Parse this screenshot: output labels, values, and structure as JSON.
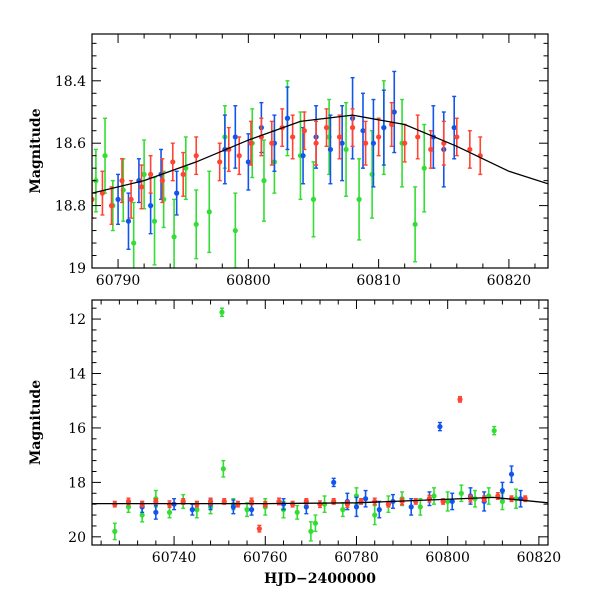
{
  "chart_data": [
    {
      "type": "scatter",
      "title": "",
      "xlabel": "",
      "ylabel": "Magnitude",
      "xlim": [
        60788,
        60823
      ],
      "ylim": [
        19.0,
        18.25
      ],
      "y_inverted": true,
      "grid": false,
      "xticks": [
        60790,
        60800,
        60810,
        60820
      ],
      "yticks": [
        18.4,
        18.6,
        18.8,
        19
      ],
      "colors": {
        "green": "#33dd33",
        "blue": "#1155ee",
        "red": "#ff4433",
        "model": "#000000"
      },
      "model_curve": {
        "x": [
          60788,
          60792,
          60796,
          60800,
          60804,
          60808,
          60812,
          60816,
          60820,
          60823
        ],
        "y": [
          18.76,
          18.72,
          18.66,
          18.59,
          18.53,
          18.51,
          18.54,
          18.61,
          18.69,
          18.73
        ]
      },
      "series": [
        {
          "color": "green",
          "x": [
            60788.3,
            60789.0,
            60789.6,
            60790.4,
            60791.2,
            60792.0,
            60792.8,
            60793.5,
            60794.3,
            60795.2,
            60796.0,
            60797.0,
            60798.2,
            60799.0,
            60800.3,
            60801.2,
            60802.0,
            60803.0,
            60804.0,
            60805.0,
            60806.2,
            60807.5,
            60808.5,
            60809.5,
            60810.4,
            60811.8,
            60812.8,
            60813.5
          ],
          "y": [
            18.72,
            18.64,
            18.8,
            18.75,
            18.92,
            18.7,
            18.85,
            18.78,
            18.9,
            18.68,
            18.86,
            18.82,
            18.58,
            18.88,
            18.6,
            18.72,
            18.66,
            18.52,
            18.64,
            18.78,
            18.58,
            18.62,
            18.78,
            18.7,
            18.55,
            18.6,
            18.86,
            18.68
          ],
          "err": [
            0.1,
            0.12,
            0.08,
            0.1,
            0.13,
            0.11,
            0.14,
            0.09,
            0.12,
            0.1,
            0.11,
            0.13,
            0.1,
            0.12,
            0.11,
            0.13,
            0.1,
            0.12,
            0.14,
            0.12,
            0.12,
            0.15,
            0.13,
            0.14,
            0.15,
            0.14,
            0.12,
            0.14
          ]
        },
        {
          "color": "blue",
          "x": [
            60790.0,
            60790.8,
            60791.6,
            60792.5,
            60793.3,
            60794.5,
            60798.2,
            60799.0,
            60800.0,
            60801.0,
            60802.0,
            60803.0,
            60804.2,
            60805.2,
            60806.3,
            60807.2,
            60808.0,
            60808.8,
            60809.6,
            60810.4,
            60811.2,
            60814.2,
            60815.0,
            60815.8
          ],
          "y": [
            18.78,
            18.85,
            18.72,
            18.8,
            18.7,
            18.76,
            18.62,
            18.58,
            18.66,
            18.55,
            18.6,
            18.52,
            18.64,
            18.58,
            18.62,
            18.6,
            18.52,
            18.56,
            18.6,
            18.55,
            18.5,
            18.58,
            18.62,
            18.55
          ],
          "err": [
            0.08,
            0.09,
            0.07,
            0.09,
            0.08,
            0.07,
            0.11,
            0.1,
            0.09,
            0.08,
            0.09,
            0.1,
            0.09,
            0.1,
            0.11,
            0.12,
            0.13,
            0.12,
            0.14,
            0.12,
            0.13,
            0.1,
            0.12,
            0.1
          ]
        },
        {
          "color": "red",
          "x": [
            60788.0,
            60788.8,
            60789.5,
            60790.3,
            60791.0,
            60791.8,
            60792.5,
            60793.4,
            60794.2,
            60795.0,
            60796.0,
            60797.8,
            60798.5,
            60799.3,
            60800.2,
            60801.0,
            60801.8,
            60802.6,
            60803.4,
            60804.3,
            60805.2,
            60806.0,
            60807.0,
            60808.0,
            60809.0,
            60810.0,
            60811.0,
            60812.0,
            60813.0,
            60814.0,
            60815.0,
            60816.0,
            60817.0,
            60817.8
          ],
          "y": [
            18.78,
            18.76,
            18.8,
            18.72,
            18.78,
            18.74,
            18.7,
            18.72,
            18.66,
            18.7,
            18.64,
            18.66,
            18.62,
            18.64,
            18.6,
            18.58,
            18.6,
            18.55,
            18.58,
            18.56,
            18.6,
            18.55,
            18.58,
            18.55,
            18.6,
            18.58,
            18.54,
            18.6,
            18.58,
            18.62,
            18.6,
            18.58,
            18.62,
            18.64
          ],
          "err": [
            0.06,
            0.07,
            0.06,
            0.07,
            0.06,
            0.07,
            0.06,
            0.07,
            0.06,
            0.07,
            0.06,
            0.06,
            0.07,
            0.06,
            0.07,
            0.06,
            0.07,
            0.06,
            0.07,
            0.06,
            0.07,
            0.06,
            0.07,
            0.06,
            0.07,
            0.06,
            0.07,
            0.06,
            0.07,
            0.06,
            0.07,
            0.06,
            0.06,
            0.06
          ]
        }
      ]
    },
    {
      "type": "scatter",
      "title": "",
      "xlabel": "HJD−2400000",
      "ylabel": "Magnitude",
      "xlim": [
        60722,
        60822
      ],
      "ylim": [
        20.3,
        11.3
      ],
      "y_inverted": true,
      "grid": false,
      "xticks": [
        60740,
        60760,
        60780,
        60800,
        60820
      ],
      "yticks": [
        12,
        14,
        16,
        18,
        20
      ],
      "colors": {
        "green": "#33dd33",
        "blue": "#1155ee",
        "red": "#ff4433",
        "model": "#000000"
      },
      "model_curve": {
        "x": [
          60722,
          60740,
          60760,
          60780,
          60800,
          60810,
          60822
        ],
        "y": [
          18.78,
          18.78,
          18.78,
          18.75,
          18.62,
          18.55,
          18.75
        ]
      },
      "series": [
        {
          "color": "green",
          "x": [
            60727,
            60730,
            60733,
            60736,
            60739,
            60742,
            60745,
            60748,
            60750.5,
            60750.8,
            60753,
            60756,
            60760,
            60764,
            60767,
            60770,
            60771,
            60773,
            60777,
            60780,
            60784,
            60787,
            60790,
            60794,
            60797,
            60800,
            60803,
            60806,
            60809,
            60810.2,
            60812,
            60815
          ],
          "y": [
            19.8,
            18.9,
            19.2,
            18.6,
            19.1,
            18.7,
            19.0,
            18.9,
            11.75,
            17.5,
            18.8,
            19.0,
            18.9,
            19.0,
            19.1,
            19.8,
            19.5,
            18.8,
            19.0,
            18.5,
            19.2,
            18.8,
            18.6,
            18.9,
            18.5,
            18.7,
            18.4,
            18.6,
            18.5,
            16.1,
            18.7,
            18.6
          ],
          "err": [
            0.3,
            0.2,
            0.25,
            0.3,
            0.2,
            0.25,
            0.3,
            0.25,
            0.15,
            0.3,
            0.2,
            0.25,
            0.3,
            0.3,
            0.25,
            0.35,
            0.3,
            0.3,
            0.25,
            0.3,
            0.35,
            0.3,
            0.25,
            0.3,
            0.3,
            0.35,
            0.3,
            0.3,
            0.3,
            0.15,
            0.3,
            0.35
          ]
        },
        {
          "color": "blue",
          "x": [
            60733,
            60736,
            60740,
            60744,
            60748,
            60753,
            60757,
            60764,
            60769,
            60775,
            60778,
            60780,
            60782,
            60785,
            60788,
            60792,
            60796,
            60798.3,
            60801,
            60805,
            60808,
            60812,
            60814,
            60816
          ],
          "y": [
            18.9,
            19.1,
            18.8,
            19.0,
            18.8,
            18.9,
            19.0,
            18.8,
            18.9,
            18.0,
            18.7,
            18.9,
            18.6,
            19.0,
            18.7,
            18.9,
            18.6,
            15.95,
            18.7,
            18.5,
            18.7,
            18.3,
            17.7,
            18.6
          ],
          "err": [
            0.2,
            0.25,
            0.2,
            0.2,
            0.2,
            0.25,
            0.2,
            0.2,
            0.25,
            0.15,
            0.3,
            0.35,
            0.3,
            0.3,
            0.25,
            0.3,
            0.25,
            0.15,
            0.3,
            0.3,
            0.35,
            0.3,
            0.3,
            0.3
          ]
        },
        {
          "color": "red",
          "x": [
            60727,
            60730,
            60733,
            60736,
            60739,
            60742,
            60745,
            60748,
            60751,
            60754,
            60757,
            60758.7,
            60760,
            60763,
            60766,
            60769,
            60772,
            60775,
            60778,
            60781,
            60784,
            60787,
            60790,
            60793,
            60796,
            60799,
            60802.7,
            60805,
            60808,
            60811,
            60814,
            60817
          ],
          "y": [
            18.8,
            18.7,
            18.8,
            18.7,
            18.8,
            18.7,
            18.8,
            18.7,
            18.7,
            18.8,
            18.7,
            19.7,
            18.8,
            18.7,
            18.8,
            18.7,
            18.8,
            18.7,
            18.8,
            18.7,
            18.7,
            18.8,
            18.7,
            18.7,
            18.6,
            18.7,
            14.95,
            18.6,
            18.6,
            18.5,
            18.6,
            18.6
          ],
          "err": [
            0.1,
            0.12,
            0.1,
            0.1,
            0.12,
            0.1,
            0.1,
            0.12,
            0.1,
            0.1,
            0.12,
            0.12,
            0.1,
            0.12,
            0.1,
            0.1,
            0.12,
            0.1,
            0.12,
            0.1,
            0.12,
            0.1,
            0.12,
            0.1,
            0.12,
            0.1,
            0.1,
            0.12,
            0.1,
            0.12,
            0.1,
            0.1
          ]
        }
      ]
    }
  ]
}
